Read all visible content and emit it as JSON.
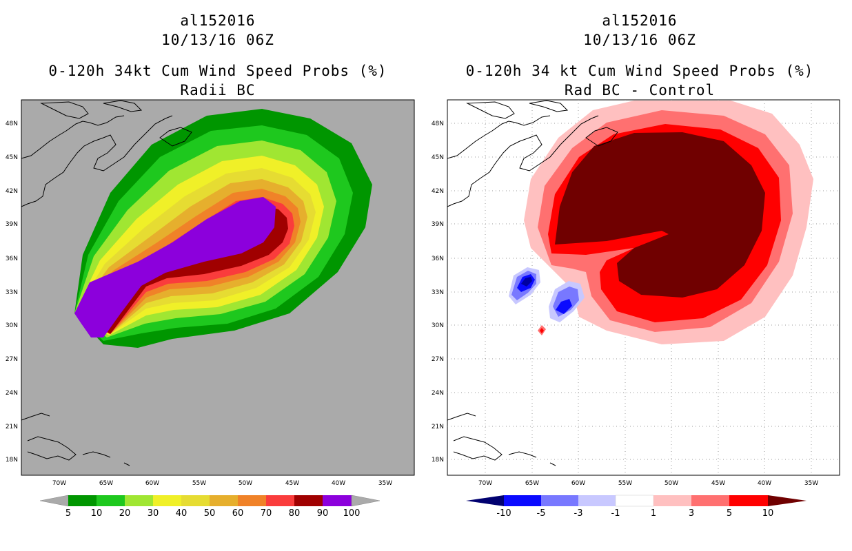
{
  "left_panel": {
    "storm_id": "al152016",
    "datetime": "10/13/16 06Z",
    "title": "0-120h 34kt Cum Wind Speed Probs (%)",
    "subtitle": "Radii BC",
    "lat_labels": [
      "48N",
      "45N",
      "42N",
      "39N",
      "36N",
      "33N",
      "30N",
      "27N",
      "24N",
      "21N",
      "18N"
    ],
    "lon_labels": [
      "70W",
      "65W",
      "60W",
      "55W",
      "50W",
      "45W",
      "40W",
      "35W"
    ],
    "colorbar": {
      "labels": [
        "5",
        "10",
        "20",
        "30",
        "40",
        "50",
        "60",
        "70",
        "80",
        "90",
        "100"
      ],
      "colors": [
        "#009600",
        "#1ec81e",
        "#a0e632",
        "#f0f028",
        "#e6dc32",
        "#e6af2d",
        "#f08228",
        "#fa3c3c",
        "#a00000",
        "#8c00dc"
      ]
    }
  },
  "right_panel": {
    "storm_id": "al152016",
    "datetime": "10/13/16 06Z",
    "title": "0-120h 34 kt Cum Wind Speed Probs (%)",
    "subtitle": "Rad BC - Control",
    "lat_labels": [
      "48N",
      "45N",
      "42N",
      "39N",
      "36N",
      "33N",
      "30N",
      "27N",
      "24N",
      "21N",
      "18N"
    ],
    "lon_labels": [
      "70W",
      "65W",
      "60W",
      "55W",
      "50W",
      "45W",
      "40W",
      "35W"
    ],
    "colorbar": {
      "labels": [
        "-10",
        "-5",
        "-3",
        "-1",
        "1",
        "3",
        "5",
        "10"
      ],
      "colors": [
        "#0000a0",
        "#0a0aff",
        "#7878ff",
        "#c8c8ff",
        "#ffffff",
        "#ffc0c0",
        "#ff7070",
        "#ff0000"
      ],
      "end_low": "#000070",
      "end_high": "#700000"
    }
  }
}
